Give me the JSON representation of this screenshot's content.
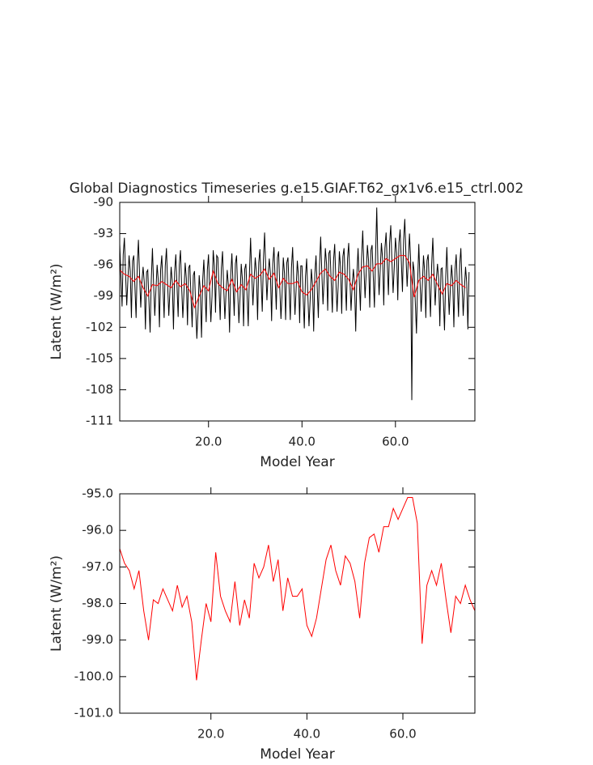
{
  "chart_data": [
    {
      "type": "line",
      "title": "Global Diagnostics Timeseries g.e15.GIAF.T62_gx1v6.e15_ctrl.002",
      "xlabel": "Model Year",
      "ylabel": "Latent (W/m²)",
      "xlim": [
        1,
        77
      ],
      "xticks": [
        {
          "value": 20,
          "label": "20.0"
        },
        {
          "value": 40,
          "label": "40.0"
        },
        {
          "value": 60,
          "label": "60.0"
        }
      ],
      "ylim": [
        -111,
        -90
      ],
      "yticks": [
        -90,
        -93,
        -96,
        -99,
        -102,
        -105,
        -108,
        -111
      ],
      "series": [
        {
          "color": "#000000",
          "x": [
            1,
            1.25,
            1.5,
            1.75,
            2,
            2.25,
            2.5,
            2.75,
            3,
            3.25,
            3.5,
            3.75,
            4,
            4.25,
            4.5,
            4.75,
            5,
            5.25,
            5.5,
            5.75,
            6,
            6.25,
            6.5,
            6.75,
            7,
            7.25,
            7.5,
            7.75,
            8,
            8.25,
            8.5,
            8.75,
            9,
            9.25,
            9.5,
            9.75,
            10,
            10.25,
            10.5,
            10.75,
            11,
            11.25,
            11.5,
            11.75,
            12,
            12.25,
            12.5,
            12.75,
            13,
            13.25,
            13.5,
            13.75,
            14,
            14.25,
            14.5,
            14.75,
            15,
            15.25,
            15.5,
            15.75,
            16,
            16.25,
            16.5,
            16.75,
            17,
            17.25,
            17.5,
            17.75,
            18,
            18.25,
            18.5,
            18.75,
            19,
            19.25,
            19.5,
            19.75,
            20,
            20.25,
            20.5,
            20.75,
            21,
            21.25,
            21.5,
            21.75,
            22,
            22.25,
            22.5,
            22.75,
            23,
            23.25,
            23.5,
            23.75,
            24,
            24.25,
            24.5,
            24.75,
            25,
            25.25,
            25.5,
            25.75,
            26,
            26.25,
            26.5,
            26.75,
            27,
            27.25,
            27.5,
            27.75,
            28,
            28.25,
            28.5,
            28.75,
            29,
            29.25,
            29.5,
            29.75,
            30,
            30.25,
            30.5,
            30.75,
            31,
            31.25,
            31.5,
            31.75,
            32,
            32.25,
            32.5,
            32.75,
            33,
            33.25,
            33.5,
            33.75,
            34,
            34.25,
            34.5,
            34.75,
            35,
            35.25,
            35.5,
            35.75,
            36,
            36.25,
            36.5,
            36.75,
            37,
            37.25,
            37.5,
            37.75,
            38,
            38.25,
            38.5,
            38.75,
            39,
            39.25,
            39.5,
            39.75,
            40,
            40.25,
            40.5,
            40.75,
            41,
            41.25,
            41.5,
            41.75,
            42,
            42.25,
            42.5,
            42.75,
            43,
            43.25,
            43.5,
            43.75,
            44,
            44.25,
            44.5,
            44.75,
            45,
            45.25,
            45.5,
            45.75,
            46,
            46.25,
            46.5,
            46.75,
            47,
            47.25,
            47.5,
            47.75,
            48,
            48.25,
            48.5,
            48.75,
            49,
            49.25,
            49.5,
            49.75,
            50,
            50.25,
            50.5,
            50.75,
            51,
            51.25,
            51.5,
            51.75,
            52,
            52.25,
            52.5,
            52.75,
            53,
            53.25,
            53.5,
            53.75,
            54,
            54.25,
            54.5,
            54.75,
            55,
            55.25,
            55.5,
            55.75,
            56,
            56.25,
            56.5,
            56.75,
            57,
            57.25,
            57.5,
            57.75,
            58,
            58.25,
            58.5,
            58.75,
            59,
            59.25,
            59.5,
            59.75,
            60,
            60.25,
            60.5,
            60.75,
            61,
            61.25,
            61.5,
            61.75,
            62,
            62.25,
            62.5,
            62.75,
            63,
            63.25,
            63.5,
            63.75,
            64,
            64.25,
            64.5,
            64.75,
            65,
            65.25,
            65.5,
            65.75,
            66,
            66.25,
            66.5,
            66.75,
            67,
            67.25,
            67.5,
            67.75,
            68,
            68.25,
            68.5,
            68.75,
            69,
            69.25,
            69.5,
            69.75,
            70,
            70.25,
            70.5,
            70.75,
            71,
            71.25,
            71.5,
            71.75,
            72,
            72.25,
            72.5,
            72.75,
            73,
            73.25,
            73.5,
            73.75,
            74,
            74.25,
            74.5,
            74.75,
            75,
            75.25,
            75.5,
            75.75
          ],
          "values": [
            -94.0,
            -97.0,
            -100.0,
            -95.0,
            -93.4,
            -96.9,
            -99.9,
            -97.4,
            -95.1,
            -96.6,
            -101.1,
            -95.6,
            -95.1,
            -98.1,
            -101.1,
            -96.1,
            -93.6,
            -97.1,
            -100.1,
            -97.6,
            -96.2,
            -97.7,
            -102.2,
            -96.7,
            -96.5,
            -99.5,
            -102.5,
            -97.5,
            -94.4,
            -97.9,
            -100.9,
            -98.4,
            -96.0,
            -97.5,
            -102.0,
            -96.5,
            -95.1,
            -98.1,
            -101.1,
            -96.1,
            -94.4,
            -97.9,
            -100.9,
            -98.4,
            -96.2,
            -97.7,
            -102.2,
            -96.7,
            -95.0,
            -98.0,
            -101.0,
            -96.0,
            -94.6,
            -98.1,
            -101.1,
            -98.6,
            -95.8,
            -97.3,
            -101.8,
            -96.3,
            -96.0,
            -99.0,
            -102.0,
            -97.0,
            -96.6,
            -100.1,
            -103.1,
            -100.6,
            -97.0,
            -98.5,
            -103.0,
            -97.5,
            -95.5,
            -98.5,
            -101.5,
            -96.5,
            -95.0,
            -98.5,
            -101.5,
            -99.0,
            -94.6,
            -96.1,
            -100.6,
            -95.1,
            -95.3,
            -98.3,
            -101.3,
            -96.3,
            -94.7,
            -98.2,
            -101.2,
            -98.7,
            -96.5,
            -98.0,
            -102.5,
            -97.0,
            -94.9,
            -97.9,
            -100.9,
            -95.9,
            -95.1,
            -98.6,
            -101.6,
            -99.1,
            -95.9,
            -97.4,
            -101.9,
            -96.4,
            -95.9,
            -98.9,
            -101.9,
            -96.9,
            -93.4,
            -96.9,
            -99.9,
            -97.4,
            -95.3,
            -96.8,
            -101.3,
            -95.8,
            -94.5,
            -97.5,
            -100.5,
            -95.5,
            -92.9,
            -96.4,
            -99.4,
            -96.9,
            -95.4,
            -96.9,
            -101.4,
            -95.9,
            -94.3,
            -97.3,
            -100.3,
            -95.3,
            -94.7,
            -98.2,
            -101.2,
            -98.7,
            -95.3,
            -96.8,
            -101.3,
            -95.8,
            -95.3,
            -98.3,
            -101.3,
            -96.3,
            -94.3,
            -97.8,
            -100.8,
            -98.3,
            -95.6,
            -97.1,
            -101.6,
            -96.1,
            -96.1,
            -99.1,
            -102.1,
            -97.1,
            -95.4,
            -98.9,
            -101.9,
            -99.4,
            -96.4,
            -97.9,
            -102.4,
            -96.9,
            -95.1,
            -98.1,
            -101.1,
            -96.1,
            -93.3,
            -96.8,
            -99.8,
            -97.3,
            -94.4,
            -95.9,
            -100.4,
            -94.9,
            -94.6,
            -97.6,
            -100.6,
            -95.6,
            -94.0,
            -97.5,
            -100.5,
            -98.0,
            -94.7,
            -96.2,
            -100.7,
            -95.2,
            -94.4,
            -97.4,
            -100.4,
            -95.4,
            -93.9,
            -97.4,
            -100.4,
            -97.9,
            -96.4,
            -97.9,
            -102.4,
            -96.9,
            -94.4,
            -97.4,
            -100.4,
            -95.4,
            -92.7,
            -96.2,
            -99.2,
            -96.7,
            -94.1,
            -95.6,
            -100.1,
            -94.6,
            -94.1,
            -97.1,
            -100.1,
            -95.1,
            -90.5,
            -95.9,
            -98.9,
            -96.4,
            -93.9,
            -95.4,
            -99.9,
            -94.4,
            -92.9,
            -95.9,
            -98.9,
            -93.9,
            -92.2,
            -95.7,
            -98.7,
            -96.2,
            -93.4,
            -94.9,
            -99.4,
            -93.9,
            -92.6,
            -95.6,
            -98.6,
            -93.6,
            -91.6,
            -95.1,
            -98.1,
            -95.6,
            -93.0,
            -95.5,
            -109.0,
            -95.7,
            -96.6,
            -99.6,
            -102.6,
            -97.6,
            -94.0,
            -97.5,
            -100.5,
            -98.0,
            -95.1,
            -96.6,
            -101.1,
            -95.6,
            -95.0,
            -98.0,
            -101.0,
            -96.0,
            -93.4,
            -96.9,
            -99.9,
            -97.4,
            -95.9,
            -97.4,
            -101.9,
            -96.4,
            -96.3,
            -99.3,
            -102.3,
            -97.3,
            -94.3,
            -97.8,
            -100.8,
            -98.3,
            -96.0,
            -97.5,
            -102.0,
            -96.5,
            -95.0,
            -98.0,
            -101.0,
            -96.0,
            -94.4,
            -97.9,
            -100.9,
            -98.4,
            -96.2,
            -97.7,
            -102.2,
            -96.7
          ]
        },
        {
          "color": "#ff0000",
          "x": [
            1,
            2,
            3,
            4,
            5,
            6,
            7,
            8,
            9,
            10,
            11,
            12,
            13,
            14,
            15,
            16,
            17,
            18,
            19,
            20,
            21,
            22,
            23,
            24,
            25,
            26,
            27,
            28,
            29,
            30,
            31,
            32,
            33,
            34,
            35,
            36,
            37,
            38,
            39,
            40,
            41,
            42,
            43,
            44,
            45,
            46,
            47,
            48,
            49,
            50,
            51,
            52,
            53,
            54,
            55,
            56,
            57,
            58,
            59,
            60,
            61,
            62,
            63,
            64,
            65,
            66,
            67,
            68,
            69,
            70,
            71,
            72,
            73,
            74,
            75
          ],
          "values": [
            -96.5,
            -96.9,
            -97.1,
            -97.6,
            -97.1,
            -98.2,
            -99.0,
            -97.9,
            -98.0,
            -97.6,
            -97.9,
            -98.2,
            -97.5,
            -98.1,
            -97.8,
            -98.5,
            -100.1,
            -99.0,
            -98.0,
            -98.5,
            -96.6,
            -97.8,
            -98.2,
            -98.5,
            -97.4,
            -98.6,
            -97.9,
            -98.4,
            -96.9,
            -97.3,
            -97.0,
            -96.4,
            -97.4,
            -96.8,
            -98.2,
            -97.3,
            -97.8,
            -97.8,
            -97.6,
            -98.6,
            -98.9,
            -98.4,
            -97.6,
            -96.8,
            -96.4,
            -97.1,
            -97.5,
            -96.7,
            -96.9,
            -97.4,
            -98.4,
            -96.9,
            -96.2,
            -96.1,
            -96.6,
            -95.9,
            -95.9,
            -95.4,
            -95.7,
            -95.4,
            -95.1,
            -95.1,
            -95.8,
            -99.1,
            -97.5,
            -97.1,
            -97.5,
            -96.9,
            -97.9,
            -98.8,
            -97.8,
            -98.0,
            -97.5,
            -97.9,
            -98.2
          ]
        }
      ]
    },
    {
      "type": "line",
      "xlabel": "Model Year",
      "ylabel": "Latent (W/m²)",
      "xlim": [
        1,
        75
      ],
      "xticks": [
        {
          "value": 20,
          "label": "20.0"
        },
        {
          "value": 40,
          "label": "40.0"
        },
        {
          "value": 60,
          "label": "60.0"
        }
      ],
      "ylim": [
        -101,
        -95
      ],
      "yticks": [
        {
          "value": -95,
          "label": "-95.0"
        },
        {
          "value": -96,
          "label": "-96.0"
        },
        {
          "value": -97,
          "label": "-97.0"
        },
        {
          "value": -98,
          "label": "-98.0"
        },
        {
          "value": -99,
          "label": "-99.0"
        },
        {
          "value": -100,
          "label": "-100.0"
        },
        {
          "value": -101,
          "label": "-101.0"
        }
      ],
      "series": [
        {
          "color": "#ff0000",
          "x": [
            1,
            2,
            3,
            4,
            5,
            6,
            7,
            8,
            9,
            10,
            11,
            12,
            13,
            14,
            15,
            16,
            17,
            18,
            19,
            20,
            21,
            22,
            23,
            24,
            25,
            26,
            27,
            28,
            29,
            30,
            31,
            32,
            33,
            34,
            35,
            36,
            37,
            38,
            39,
            40,
            41,
            42,
            43,
            44,
            45,
            46,
            47,
            48,
            49,
            50,
            51,
            52,
            53,
            54,
            55,
            56,
            57,
            58,
            59,
            60,
            61,
            62,
            63,
            64,
            65,
            66,
            67,
            68,
            69,
            70,
            71,
            72,
            73,
            74,
            75
          ],
          "values": [
            -96.5,
            -96.9,
            -97.1,
            -97.6,
            -97.1,
            -98.2,
            -99.0,
            -97.9,
            -98.0,
            -97.6,
            -97.9,
            -98.2,
            -97.5,
            -98.1,
            -97.8,
            -98.5,
            -100.1,
            -99.0,
            -98.0,
            -98.5,
            -96.6,
            -97.8,
            -98.2,
            -98.5,
            -97.4,
            -98.6,
            -97.9,
            -98.4,
            -96.9,
            -97.3,
            -97.0,
            -96.4,
            -97.4,
            -96.8,
            -98.2,
            -97.3,
            -97.8,
            -97.8,
            -97.6,
            -98.6,
            -98.9,
            -98.4,
            -97.6,
            -96.8,
            -96.4,
            -97.1,
            -97.5,
            -96.7,
            -96.9,
            -97.4,
            -98.4,
            -96.9,
            -96.2,
            -96.1,
            -96.6,
            -95.9,
            -95.9,
            -95.4,
            -95.7,
            -95.4,
            -95.1,
            -95.1,
            -95.8,
            -99.1,
            -97.5,
            -97.1,
            -97.5,
            -96.9,
            -97.9,
            -98.8,
            -97.8,
            -98.0,
            -97.5,
            -97.9,
            -98.2
          ]
        }
      ]
    }
  ]
}
